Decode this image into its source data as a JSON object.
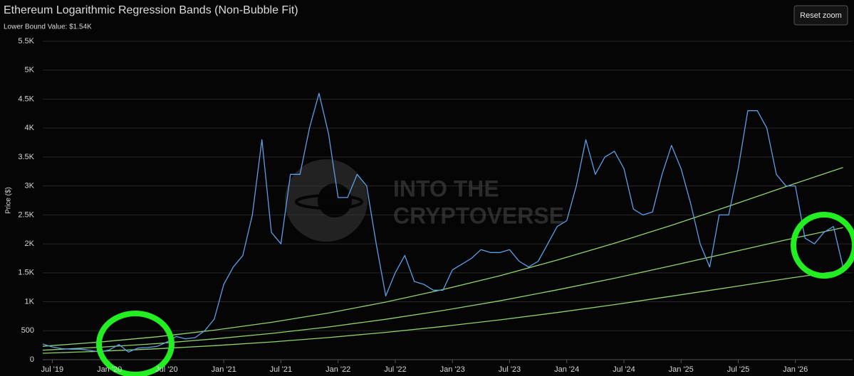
{
  "chart_data": {
    "type": "line",
    "title": "Ethereum Logarithmic Regression Bands (Non-Bubble Fit)",
    "subtitle": "Lower Bound Value: $1.54K",
    "y_label": "Price ($)",
    "button": "Reset zoom",
    "watermark": [
      "INTO THE",
      "CRYPTOVERSE"
    ],
    "x": [
      "2019-06",
      "2019-07",
      "2019-08",
      "2019-09",
      "2019-10",
      "2019-11",
      "2019-12",
      "2020-01",
      "2020-02",
      "2020-03",
      "2020-04",
      "2020-05",
      "2020-06",
      "2020-07",
      "2020-08",
      "2020-09",
      "2020-10",
      "2020-11",
      "2020-12",
      "2021-01",
      "2021-02",
      "2021-03",
      "2021-04",
      "2021-05",
      "2021-06",
      "2021-07",
      "2021-08",
      "2021-09",
      "2021-10",
      "2021-11",
      "2021-12",
      "2022-01",
      "2022-02",
      "2022-03",
      "2022-04",
      "2022-05",
      "2022-06",
      "2022-07",
      "2022-08",
      "2022-09",
      "2022-10",
      "2022-11",
      "2022-12",
      "2023-01",
      "2023-02",
      "2023-03",
      "2023-04",
      "2023-05",
      "2023-06",
      "2023-07",
      "2023-08",
      "2023-09",
      "2023-10",
      "2023-11",
      "2023-12",
      "2024-01",
      "2024-02",
      "2024-03",
      "2024-04",
      "2024-05",
      "2024-06",
      "2024-07",
      "2024-08",
      "2024-09",
      "2024-10",
      "2024-11",
      "2024-12",
      "2025-01",
      "2025-02",
      "2025-03",
      "2025-04",
      "2025-05",
      "2025-06",
      "2025-07",
      "2025-08",
      "2025-09",
      "2025-10",
      "2025-11",
      "2025-12",
      "2026-01",
      "2026-02",
      "2026-03",
      "2026-04",
      "2026-05",
      "2026-06"
    ],
    "series": [
      {
        "color": "#5b9fe8",
        "values": [
          270,
          220,
          190,
          180,
          180,
          160,
          130,
          170,
          260,
          130,
          200,
          210,
          230,
          300,
          400,
          360,
          380,
          500,
          700,
          1300,
          1600,
          1800,
          2500,
          3800,
          2200,
          2000,
          3200,
          3200,
          4000,
          4600,
          3900,
          2800,
          2800,
          3200,
          3000,
          2000,
          1100,
          1500,
          1800,
          1350,
          1300,
          1200,
          1200,
          1550,
          1650,
          1750,
          1900,
          1850,
          1850,
          1900,
          1700,
          1600,
          1700,
          2000,
          2300,
          2400,
          3000,
          3800,
          3200,
          3500,
          3600,
          3300,
          2600,
          2500,
          2550,
          3200,
          3700,
          3300,
          2700,
          2000,
          1600,
          2500,
          2500,
          3300,
          4300,
          4300,
          4000,
          3200,
          3000,
          3000,
          2100,
          2000,
          2200,
          2300,
          1600
        ]
      }
    ],
    "bands": [
      {
        "color": "#8fd46a",
        "x": [
          "2019-06",
          "2019-12",
          "2020-06",
          "2020-12",
          "2021-06",
          "2021-12",
          "2022-06",
          "2022-12",
          "2023-06",
          "2023-12",
          "2024-06",
          "2024-12",
          "2025-06",
          "2025-12",
          "2026-06"
        ],
        "values": [
          110,
          145,
          188,
          242,
          306,
          382,
          471,
          573,
          687,
          814,
          950,
          1096,
          1246,
          1398,
          1540
        ]
      },
      {
        "color": "#8fd46a",
        "x": [
          "2019-06",
          "2019-12",
          "2020-06",
          "2020-12",
          "2021-06",
          "2021-12",
          "2022-06",
          "2022-12",
          "2023-06",
          "2023-12",
          "2024-06",
          "2024-12",
          "2025-06",
          "2025-12",
          "2026-06"
        ],
        "values": [
          163,
          215,
          278,
          358,
          453,
          565,
          697,
          848,
          1017,
          1205,
          1406,
          1622,
          1844,
          2069,
          2280
        ]
      },
      {
        "color": "#8fd46a",
        "x": [
          "2019-06",
          "2019-12",
          "2020-06",
          "2020-12",
          "2021-06",
          "2021-12",
          "2022-06",
          "2022-12",
          "2023-06",
          "2023-12",
          "2024-06",
          "2024-12",
          "2025-06",
          "2025-12",
          "2026-06"
        ],
        "values": [
          231,
          305,
          395,
          510,
          645,
          805,
          995,
          1210,
          1450,
          1720,
          2010,
          2320,
          2650,
          2990,
          3320
        ]
      }
    ],
    "xlim": [
      "2019-06",
      "2026-07"
    ],
    "xticks": [
      {
        "value": "2019-07",
        "label": "Jul '19"
      },
      {
        "value": "2020-01",
        "label": "Jan '20"
      },
      {
        "value": "2020-07",
        "label": "Jul '20"
      },
      {
        "value": "2021-01",
        "label": "Jan '21"
      },
      {
        "value": "2021-07",
        "label": "Jul '21"
      },
      {
        "value": "2022-01",
        "label": "Jan '22"
      },
      {
        "value": "2022-07",
        "label": "Jul '22"
      },
      {
        "value": "2023-01",
        "label": "Jan '23"
      },
      {
        "value": "2023-07",
        "label": "Jul '23"
      },
      {
        "value": "2024-01",
        "label": "Jan '24"
      },
      {
        "value": "2024-07",
        "label": "Jul '24"
      },
      {
        "value": "2025-01",
        "label": "Jan '25"
      },
      {
        "value": "2025-07",
        "label": "Jul '25"
      },
      {
        "value": "2026-01",
        "label": "Jan '26"
      }
    ],
    "ylim": [
      0,
      5500
    ],
    "yticks": [
      0,
      500,
      {
        "value": 1000,
        "label": "1K"
      },
      {
        "value": 1500,
        "label": "1.5K"
      },
      {
        "value": 2000,
        "label": "2K"
      },
      {
        "value": 2500,
        "label": "2.5K"
      },
      {
        "value": 3000,
        "label": "3K"
      },
      {
        "value": 3500,
        "label": "3.5K"
      },
      {
        "value": 4000,
        "label": "4K"
      },
      {
        "value": 4500,
        "label": "4.5K"
      },
      {
        "value": 5000,
        "label": "5K"
      },
      {
        "value": 5500,
        "label": "5.5K"
      }
    ],
    "grid": true
  }
}
